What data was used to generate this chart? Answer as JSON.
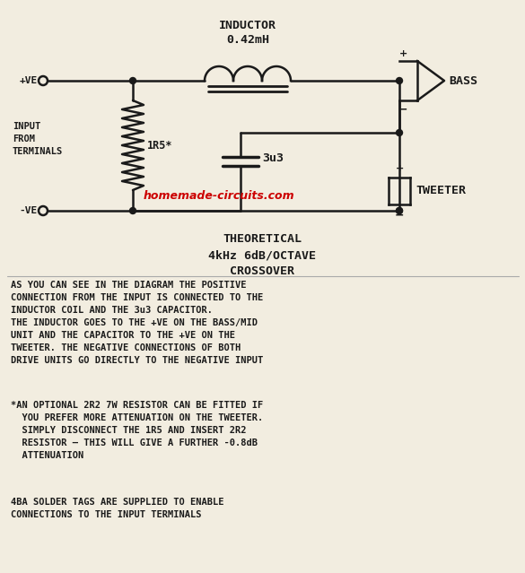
{
  "bg_color": "#f2ede0",
  "line_color": "#1a1a1a",
  "text_color": "#1a1a1a",
  "red_color": "#cc0000",
  "inductor_label": "INDUCTOR\n0.42mH",
  "subtitle": "THEORETICAL\n4kHz 6dB/OCTAVE\nCROSSOVER",
  "watermark": "homemade-circuits.com",
  "resistor_label": "1R5*",
  "capacitor_label": "3u3",
  "bass_label": "BASS",
  "tweeter_label": "TWEETER",
  "paragraph1": "AS YOU CAN SEE IN THE DIAGRAM THE POSITIVE\nCONNECTION FROM THE INPUT IS CONNECTED TO THE\nINDUCTOR COIL AND THE 3u3 CAPACITOR.\nTHE INDUCTOR GOES TO THE +VE ON THE BASS/MID\nUNIT AND THE CAPACITOR TO THE +VE ON THE\nTWEETER. THE NEGATIVE CONNECTIONS OF BOTH\nDRIVE UNITS GO DIRECTLY TO THE NEGATIVE INPUT",
  "paragraph2": "*AN OPTIONAL 2R2 7W RESISTOR CAN BE FITTED IF\n  YOU PREFER MORE ATTENUATION ON THE TWEETER.\n  SIMPLY DISCONNECT THE 1R5 AND INSERT 2R2\n  RESISTOR – THIS WILL GIVE A FURTHER -0.8dB\n  ATTENUATION",
  "paragraph3": "4BA SOLDER TAGS ARE SUPPLIED TO ENABLE\nCONNECTIONS TO THE INPUT TERMINALS"
}
